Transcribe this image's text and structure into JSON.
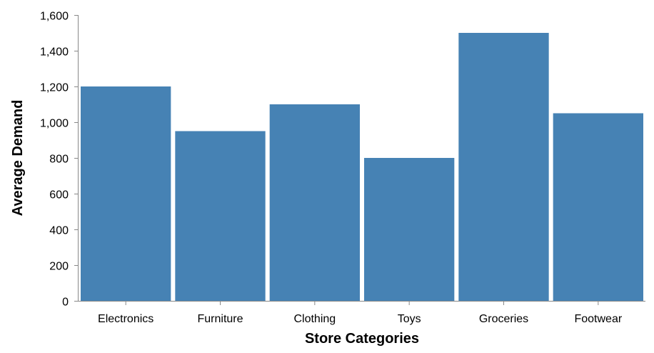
{
  "chart_data": {
    "type": "bar",
    "title": "",
    "xlabel": "Store Categories",
    "ylabel": "Average Demand",
    "categories": [
      "Electronics",
      "Furniture",
      "Clothing",
      "Toys",
      "Groceries",
      "Footwear"
    ],
    "values": [
      1200,
      950,
      1100,
      800,
      1500,
      1050
    ],
    "ylim": [
      0,
      1600
    ],
    "yticks": [
      0,
      200,
      400,
      600,
      800,
      1000,
      1200,
      1400,
      1600
    ],
    "ytick_labels": [
      "0",
      "200",
      "400",
      "600",
      "800",
      "1,000",
      "1,200",
      "1,400",
      "1,600"
    ],
    "grid": false,
    "bar_color": "#4682b4"
  }
}
